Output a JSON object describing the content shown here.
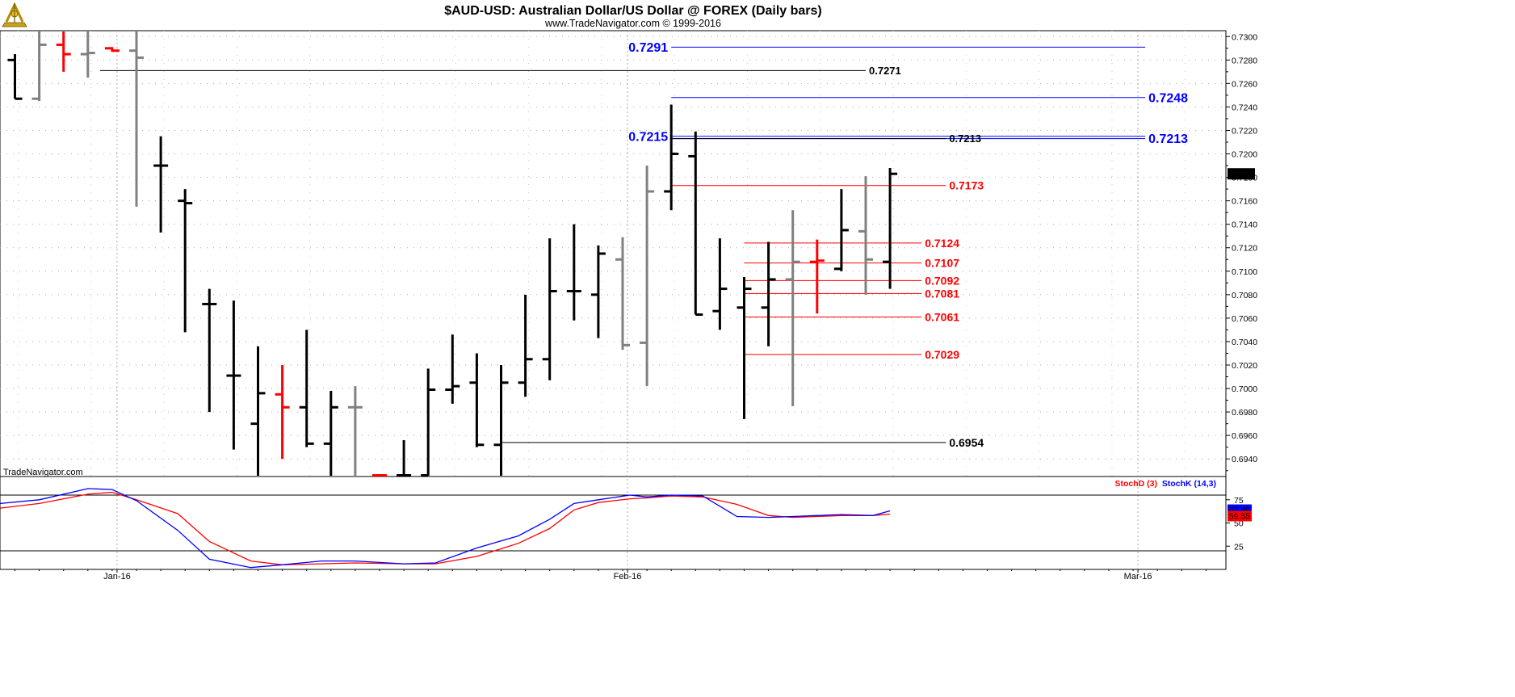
{
  "header": {
    "title": "$AUD-USD:  Australian Dollar/US Dollar @ FOREX  (Daily bars)",
    "subtitle": "www.TradeNavigator.com © 1999-2016"
  },
  "watermark": "TradeNavigator.com",
  "colors": {
    "black": "#000000",
    "gray": "#808080",
    "red": "#ff0000",
    "blue": "#0000ff",
    "grid": "#aaaaaa"
  },
  "chart_data": [
    {
      "type": "ohlc",
      "title": "$AUD-USD:  Australian Dollar/US Dollar @ FOREX  (Daily bars)",
      "xlabel": "",
      "ylabel": "",
      "ylim": [
        0.6925,
        0.7305
      ],
      "y_ticks": [
        "0.7300",
        "0.7280",
        "0.7260",
        "0.7240",
        "0.7220",
        "0.7200",
        "0.7180",
        "0.7160",
        "0.7140",
        "0.7120",
        "0.7100",
        "0.7080",
        "0.7060",
        "0.7040",
        "0.7020",
        "0.7000",
        "0.6980",
        "0.6960",
        "0.6940"
      ],
      "x_ticks": [
        {
          "label": "Jan-16",
          "index": 4
        },
        {
          "label": "Feb-16",
          "index": 25
        },
        {
          "label": "Mar-16",
          "index": 46
        }
      ],
      "grid": "dotted",
      "last_price": "0.7183",
      "bars": [
        {
          "i": 0,
          "o": 0.728,
          "h": 0.7285,
          "l": 0.7247,
          "c": 0.7247,
          "color": "black"
        },
        {
          "i": 1,
          "o": 0.7247,
          "h": 0.7305,
          "l": 0.7245,
          "c": 0.7293,
          "color": "gray"
        },
        {
          "i": 2,
          "o": 0.7293,
          "h": 0.7305,
          "l": 0.727,
          "c": 0.7285,
          "color": "red"
        },
        {
          "i": 3,
          "o": 0.7285,
          "h": 0.7305,
          "l": 0.7265,
          "c": 0.7286,
          "color": "gray"
        },
        {
          "i": 4,
          "o": 0.729,
          "h": 0.7291,
          "l": 0.7287,
          "c": 0.7288,
          "color": "red"
        },
        {
          "i": 5,
          "o": 0.7288,
          "h": 0.7305,
          "l": 0.7155,
          "c": 0.7282,
          "color": "gray"
        },
        {
          "i": 6,
          "o": 0.719,
          "h": 0.7215,
          "l": 0.7133,
          "c": 0.719,
          "color": "black"
        },
        {
          "i": 7,
          "o": 0.716,
          "h": 0.717,
          "l": 0.7048,
          "c": 0.7158,
          "color": "black"
        },
        {
          "i": 8,
          "o": 0.7072,
          "h": 0.7085,
          "l": 0.698,
          "c": 0.7072,
          "color": "black"
        },
        {
          "i": 9,
          "o": 0.7011,
          "h": 0.7075,
          "l": 0.6948,
          "c": 0.7011,
          "color": "black"
        },
        {
          "i": 10,
          "o": 0.697,
          "h": 0.7036,
          "l": 0.6925,
          "c": 0.6996,
          "color": "black"
        },
        {
          "i": 11,
          "o": 0.6995,
          "h": 0.702,
          "l": 0.694,
          "c": 0.6984,
          "color": "red"
        },
        {
          "i": 12,
          "o": 0.6984,
          "h": 0.705,
          "l": 0.695,
          "c": 0.6953,
          "color": "black"
        },
        {
          "i": 13,
          "o": 0.6953,
          "h": 0.6998,
          "l": 0.6925,
          "c": 0.6984,
          "color": "black"
        },
        {
          "i": 14,
          "o": 0.6984,
          "h": 0.7002,
          "l": 0.6925,
          "c": 0.6984,
          "color": "gray"
        },
        {
          "i": 15,
          "o": 0.6926,
          "h": 0.6927,
          "l": 0.6925,
          "c": 0.6926,
          "color": "red"
        },
        {
          "i": 16,
          "o": 0.6926,
          "h": 0.6956,
          "l": 0.6925,
          "c": 0.6926,
          "color": "black"
        },
        {
          "i": 17,
          "o": 0.6926,
          "h": 0.7017,
          "l": 0.6925,
          "c": 0.6999,
          "color": "black"
        },
        {
          "i": 18,
          "o": 0.6999,
          "h": 0.7046,
          "l": 0.6987,
          "c": 0.7002,
          "color": "black"
        },
        {
          "i": 19,
          "o": 0.7005,
          "h": 0.703,
          "l": 0.695,
          "c": 0.6952,
          "color": "black"
        },
        {
          "i": 20,
          "o": 0.6952,
          "h": 0.702,
          "l": 0.6925,
          "c": 0.7005,
          "color": "black"
        },
        {
          "i": 21,
          "o": 0.7005,
          "h": 0.708,
          "l": 0.6993,
          "c": 0.7025,
          "color": "black"
        },
        {
          "i": 22,
          "o": 0.7025,
          "h": 0.7128,
          "l": 0.7007,
          "c": 0.7083,
          "color": "black"
        },
        {
          "i": 23,
          "o": 0.7083,
          "h": 0.714,
          "l": 0.7058,
          "c": 0.7083,
          "color": "black"
        },
        {
          "i": 24,
          "o": 0.708,
          "h": 0.7122,
          "l": 0.7043,
          "c": 0.7115,
          "color": "black"
        },
        {
          "i": 25,
          "o": 0.711,
          "h": 0.7129,
          "l": 0.7033,
          "c": 0.7037,
          "color": "gray"
        },
        {
          "i": 26,
          "o": 0.7039,
          "h": 0.719,
          "l": 0.7002,
          "c": 0.7168,
          "color": "gray"
        },
        {
          "i": 27,
          "o": 0.7168,
          "h": 0.7242,
          "l": 0.7152,
          "c": 0.72,
          "color": "black"
        },
        {
          "i": 28,
          "o": 0.7198,
          "h": 0.7219,
          "l": 0.7063,
          "c": 0.7063,
          "color": "black"
        },
        {
          "i": 29,
          "o": 0.7066,
          "h": 0.7128,
          "l": 0.705,
          "c": 0.7085,
          "color": "black"
        },
        {
          "i": 30,
          "o": 0.7069,
          "h": 0.7095,
          "l": 0.6974,
          "c": 0.7085,
          "color": "black"
        },
        {
          "i": 31,
          "o": 0.7069,
          "h": 0.7125,
          "l": 0.7036,
          "c": 0.7093,
          "color": "black"
        },
        {
          "i": 32,
          "o": 0.7093,
          "h": 0.7152,
          "l": 0.6985,
          "c": 0.7108,
          "color": "gray"
        },
        {
          "i": 33,
          "o": 0.7108,
          "h": 0.7127,
          "l": 0.7064,
          "c": 0.7109,
          "color": "red"
        },
        {
          "i": 34,
          "o": 0.7102,
          "h": 0.717,
          "l": 0.71,
          "c": 0.7135,
          "color": "black"
        },
        {
          "i": 35,
          "o": 0.7134,
          "h": 0.7181,
          "l": 0.708,
          "c": 0.711,
          "color": "gray"
        },
        {
          "i": 36,
          "o": 0.7108,
          "h": 0.7188,
          "l": 0.7085,
          "c": 0.7183,
          "color": "black"
        }
      ],
      "levels": [
        {
          "value": 0.7291,
          "label": "0.7291",
          "color": "blue",
          "from": 27,
          "to": 46.5,
          "label_side": "left",
          "size": 16
        },
        {
          "value": 0.7271,
          "label": "0.7271",
          "color": "black",
          "from": 3.5,
          "to": 35,
          "label_side": "right",
          "size": 13
        },
        {
          "value": 0.7248,
          "label": "0.7248",
          "color": "blue",
          "from": 27,
          "to": 46.5,
          "label_side": "right",
          "size": 16
        },
        {
          "value": 0.7215,
          "label": "0.7215",
          "color": "blue",
          "from": 27,
          "to": 46.5,
          "label_side": "left",
          "size": 16
        },
        {
          "value": 0.7213,
          "label": "0.7213",
          "color": "blue",
          "from": 27,
          "to": 46.5,
          "label_side": "right",
          "size": 16
        },
        {
          "value": 0.7213,
          "label": "0.7213",
          "color": "black",
          "from": 27,
          "to": 38.3,
          "label_side": "right",
          "size": 13
        },
        {
          "value": 0.7173,
          "label": "0.7173",
          "color": "red",
          "from": 27,
          "to": 38.3,
          "label_side": "right",
          "size": 14
        },
        {
          "value": 0.7124,
          "label": "0.7124",
          "color": "red",
          "from": 30,
          "to": 37.3,
          "label_side": "right",
          "size": 14
        },
        {
          "value": 0.7107,
          "label": "0.7107",
          "color": "red",
          "from": 30,
          "to": 37.3,
          "label_side": "right",
          "size": 14
        },
        {
          "value": 0.7092,
          "label": "0.7092",
          "color": "red",
          "from": 30,
          "to": 37.3,
          "label_side": "right",
          "size": 14
        },
        {
          "value": 0.7081,
          "label": "0.7081",
          "color": "red",
          "from": 30,
          "to": 37.3,
          "label_side": "right",
          "size": 14
        },
        {
          "value": 0.7061,
          "label": "0.7061",
          "color": "red",
          "from": 30,
          "to": 37.3,
          "label_side": "right",
          "size": 14
        },
        {
          "value": 0.7029,
          "label": "0.7029",
          "color": "red",
          "from": 30,
          "to": 37.3,
          "label_side": "right",
          "size": 14
        },
        {
          "value": 0.6954,
          "label": "0.6954",
          "color": "black",
          "from": 20,
          "to": 38.3,
          "label_side": "right",
          "size": 14
        }
      ]
    },
    {
      "type": "line",
      "title": "",
      "ylim": [
        0,
        100
      ],
      "y_ticks": [
        "75",
        "50",
        "25"
      ],
      "reference_lines": [
        80,
        20
      ],
      "legend": [
        "StochD (3)",
        "StochK (14,3)"
      ],
      "legend_placement": "top-right",
      "last_values": {
        "StochD (3)": "59.55",
        "StochK (14,3)": "63.40"
      },
      "x": [
        -0.6,
        1,
        3,
        4,
        5,
        6.7,
        8,
        9.7,
        11,
        12.6,
        14,
        16,
        17.3,
        19,
        20.7,
        22,
        23,
        24,
        25.3,
        26,
        27,
        28.3,
        29.7,
        31,
        32,
        33,
        34,
        35.3,
        36
      ],
      "series": [
        {
          "name": "StochK (14,3)",
          "color": "blue",
          "values": [
            71,
            75,
            87,
            86,
            74,
            42,
            11,
            2,
            5,
            9,
            9,
            6,
            7,
            23,
            36,
            54,
            71,
            75,
            80,
            78,
            80,
            79,
            57,
            56,
            57,
            58,
            59,
            58,
            63
          ]
        },
        {
          "name": "StochD (3)",
          "color": "red",
          "values": [
            66,
            71,
            81,
            83,
            75,
            60,
            30,
            9,
            5,
            6,
            7,
            6,
            6,
            14,
            28,
            44,
            64,
            72,
            76,
            77,
            79,
            78,
            70,
            58,
            56,
            57,
            58,
            58,
            59.55
          ]
        }
      ]
    }
  ]
}
